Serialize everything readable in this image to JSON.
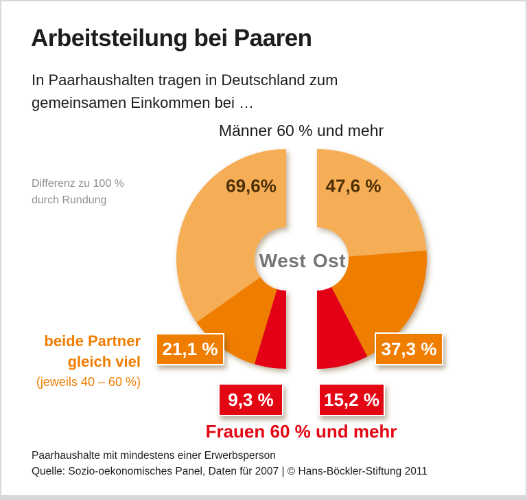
{
  "header": {
    "title": "Arbeitsteilung bei Paaren",
    "subtitle_line1": "In Paarhaushalten tragen in Deutschland zum",
    "subtitle_line2": "gemeinsamen Einkommen bei …"
  },
  "note": {
    "line1": "Differenz zu 100 %",
    "line2": "durch Rundung"
  },
  "chart_data": {
    "type": "pie",
    "variant": "two-half-donuts-split",
    "title_top": "Männer 60 % und mehr",
    "title_bottom": "Frauen 60 % und mehr",
    "categories": [
      "Männer 60 % und mehr",
      "beide Partner gleich viel (jeweils 40 – 60 %)",
      "Frauen 60 % und mehr"
    ],
    "series": [
      {
        "name": "West",
        "values": [
          69.6,
          21.1,
          9.3
        ],
        "labels": [
          "69,6%",
          "21,1 %",
          "9,3 %"
        ]
      },
      {
        "name": "Ost",
        "values": [
          47.6,
          37.3,
          15.2
        ],
        "labels": [
          "47,6 %",
          "37,3 %",
          "15,2 %"
        ]
      }
    ],
    "unit": "%",
    "colors": {
      "maenner": "#F6AE57",
      "gleich": "#EF7D00",
      "frauen": "#E30613",
      "value_label": "#4D2E05",
      "center_label": "#757575",
      "title_text": "#1d1d1b"
    },
    "legend_equal": {
      "line1": "beide Partner",
      "line2": "gleich viel",
      "line3": "(jeweils 40 – 60 %)"
    }
  },
  "footer": {
    "note": "Paarhaushalte mit mindestens einer Erwerbsperson",
    "source": "Quelle: Sozio-oekonomisches Panel, Daten für 2007 | © Hans-Böckler-Stiftung 2011"
  }
}
